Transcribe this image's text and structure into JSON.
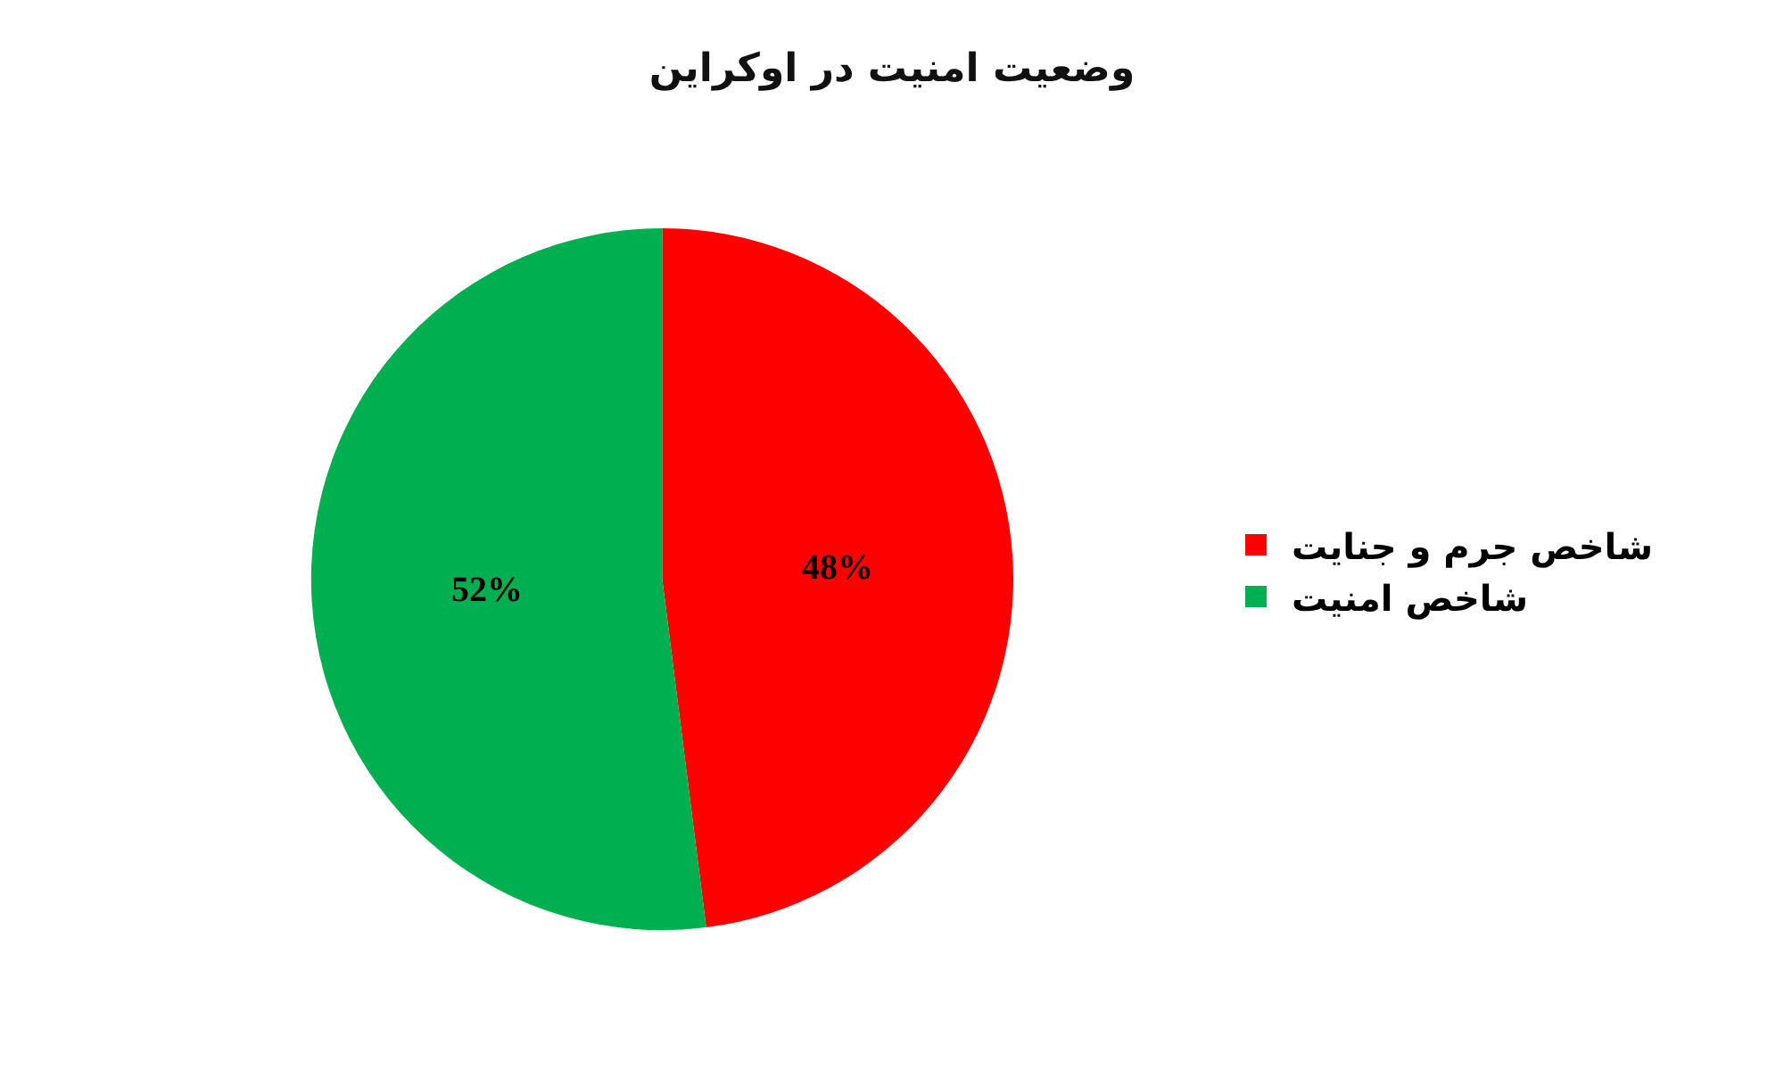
{
  "chart_data": {
    "type": "pie",
    "title": "وضعیت امنیت در اوکراین",
    "categories": [
      "شاخص جرم و جنایت",
      "شاخص امنیت"
    ],
    "values": [
      48,
      52
    ],
    "colors": [
      "#ff0000",
      "#00b050"
    ],
    "value_labels": [
      "48%",
      "52%"
    ],
    "legend": "right"
  }
}
